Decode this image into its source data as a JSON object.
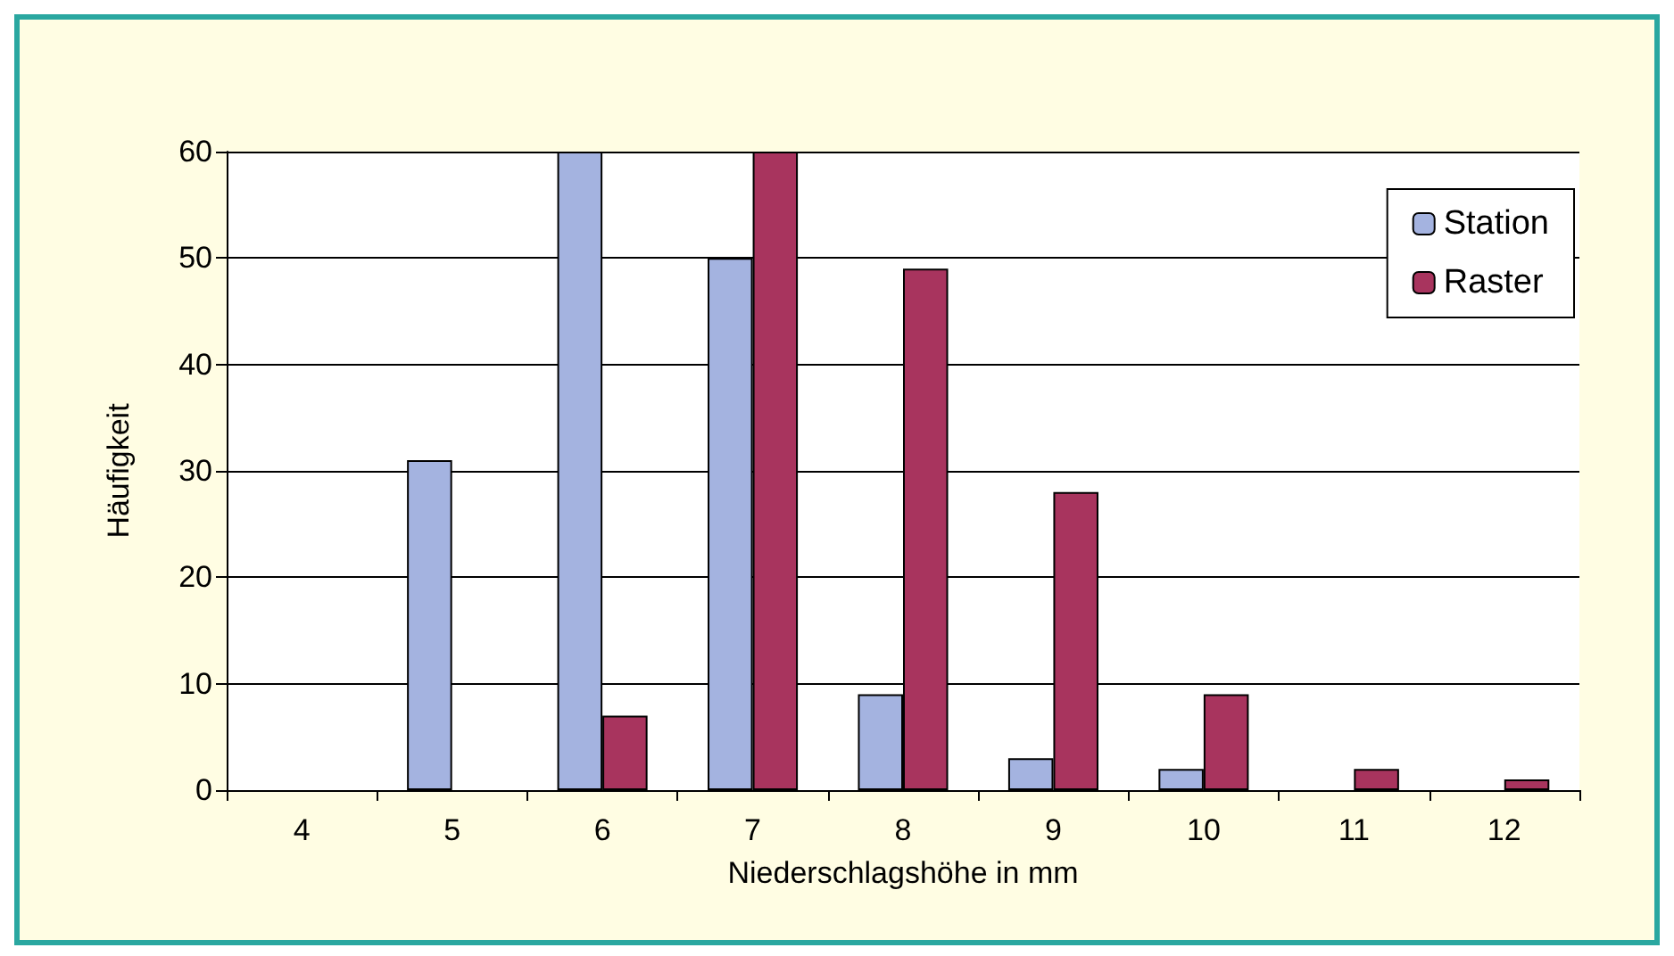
{
  "chart_data": {
    "type": "bar",
    "xlabel": "Niederschlagshöhe in mm",
    "ylabel": "Häufigkeit",
    "categories": [
      "4",
      "5",
      "6",
      "7",
      "8",
      "9",
      "10",
      "11",
      "12"
    ],
    "series": [
      {
        "name": "Station",
        "color": "#a4b3e0",
        "values": [
          0,
          31,
          60,
          50,
          9,
          3,
          2,
          0,
          0
        ]
      },
      {
        "name": "Raster",
        "color": "#a8345e",
        "values": [
          0,
          0,
          7,
          60,
          49,
          28,
          9,
          2,
          1
        ]
      }
    ],
    "ylim": [
      0,
      60
    ],
    "yticks": [
      0,
      10,
      20,
      30,
      40,
      50,
      60
    ],
    "grid": "y",
    "legend": "top right"
  }
}
